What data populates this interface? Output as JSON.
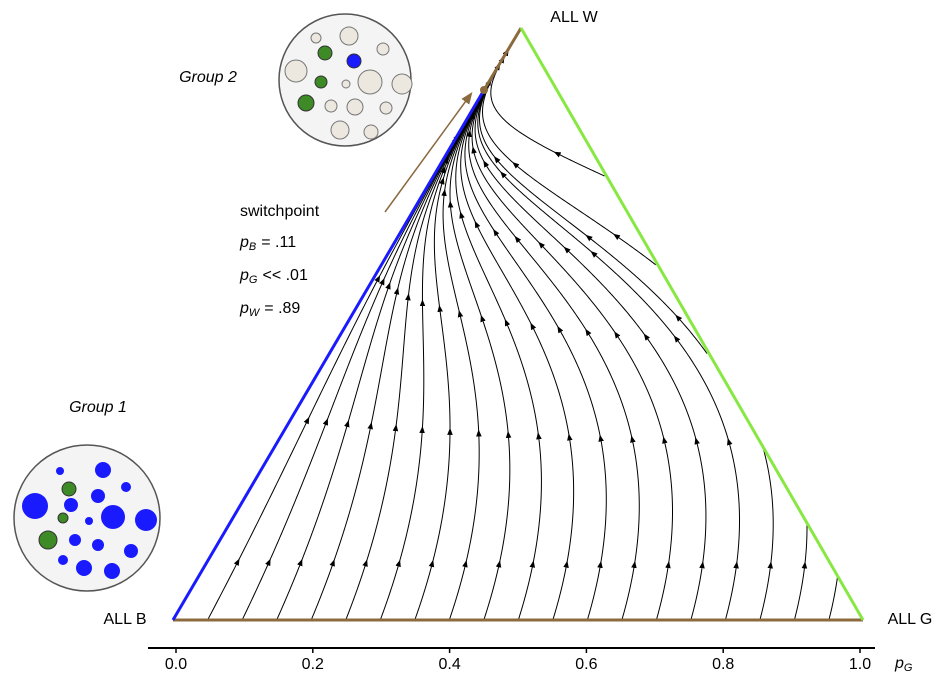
{
  "chart_data": {
    "type": "ternary-flow",
    "vertex_labels": {
      "left": "ALL B",
      "top": "ALL W",
      "right": "ALL G"
    },
    "group_labels": [
      "Group 1",
      "Group 2"
    ],
    "annotation": {
      "title": "switchpoint",
      "lines": [
        {
          "var": "p",
          "sub": "B",
          "rest": "= .11"
        },
        {
          "var": "p",
          "sub": "G",
          "rest": "<< .01"
        },
        {
          "var": "p",
          "sub": "W",
          "rest": "= .89"
        }
      ]
    },
    "x_label": {
      "var": "p",
      "sub": "G"
    },
    "xlim": [
      0,
      1
    ],
    "xticks": [
      {
        "value": 0,
        "label": "0.0"
      },
      {
        "value": 0.2,
        "label": "0.2"
      },
      {
        "value": 0.4,
        "label": "0.4"
      },
      {
        "value": 0.6,
        "label": "0.6"
      },
      {
        "value": 0.8,
        "label": "0.8"
      },
      {
        "value": 1,
        "label": "1.0"
      }
    ]
  }
}
